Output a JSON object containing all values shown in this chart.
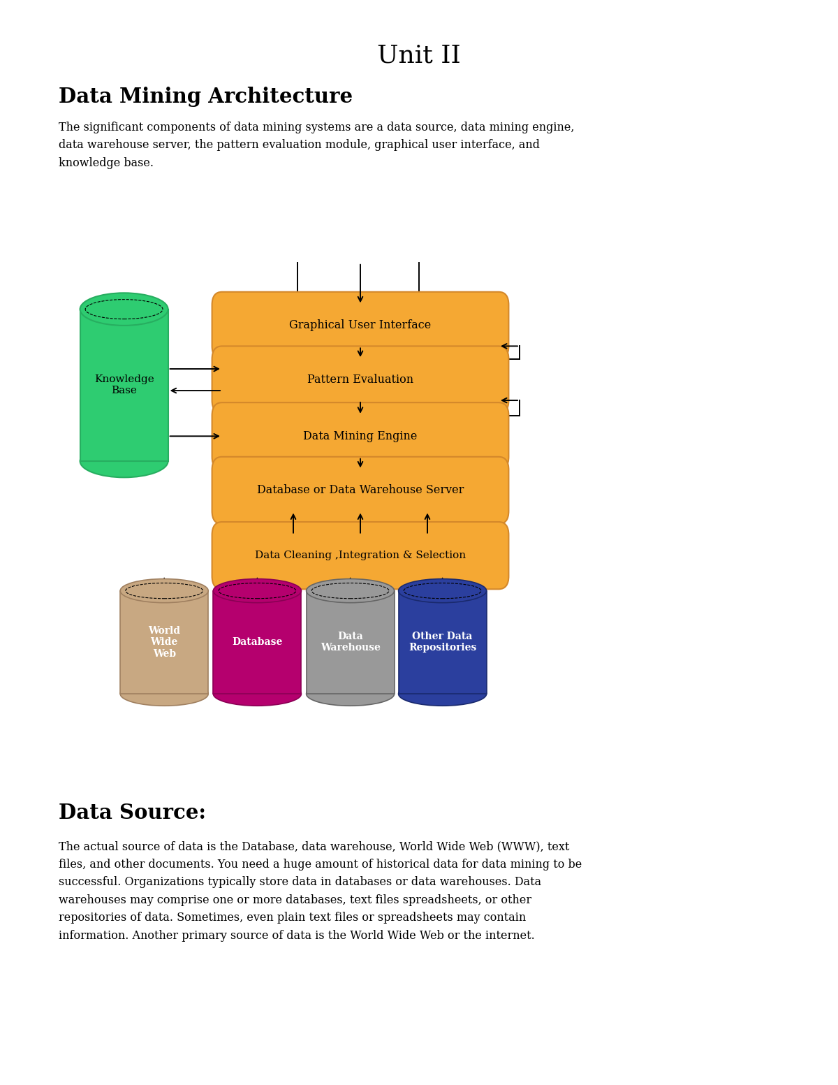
{
  "title": "Unit II",
  "section1_title": "Data Mining Architecture",
  "section1_text": "The significant components of data mining systems are a data source, data mining engine,\ndata warehouse server, the pattern evaluation module, graphical user interface, and\nknowledge base.",
  "section2_title": "Data Source:",
  "section2_text": "The actual source of data is the Database, data warehouse, World Wide Web (WWW), text\nfiles, and other documents. You need a huge amount of historical data for data mining to be\nsuccessful. Organizations typically store data in databases or data warehouses. Data\nwarehouses may comprise one or more databases, text files spreadsheets, or other\nrepositories of data. Sometimes, even plain text files or spreadsheets may contain\ninformation. Another primary source of data is the World Wide Web or the internet.",
  "box_color": "#F5A833",
  "box_edge_color": "#D4882A",
  "box_labels": [
    "Graphical User Interface",
    "Pattern Evaluation",
    "Data Mining Engine",
    "Database or Data Warehouse Server",
    "Data Cleaning ,Integration & Selection"
  ],
  "knowledge_base_color": "#2ECC71",
  "knowledge_base_edge": "#27AE60",
  "cylinder_data": [
    {
      "label": "World\nWide\nWeb",
      "color": "#C8A882",
      "edge": "#A08060",
      "text_color": "white"
    },
    {
      "label": "Database",
      "color": "#B5006E",
      "edge": "#8B0055",
      "text_color": "white"
    },
    {
      "label": "Data\nWarehouse",
      "color": "#999999",
      "edge": "#666666",
      "text_color": "white"
    },
    {
      "label": "Other Data\nRepositories",
      "color": "#2B3F9E",
      "edge": "#1A2A6E",
      "text_color": "white"
    }
  ],
  "background_color": "#ffffff"
}
